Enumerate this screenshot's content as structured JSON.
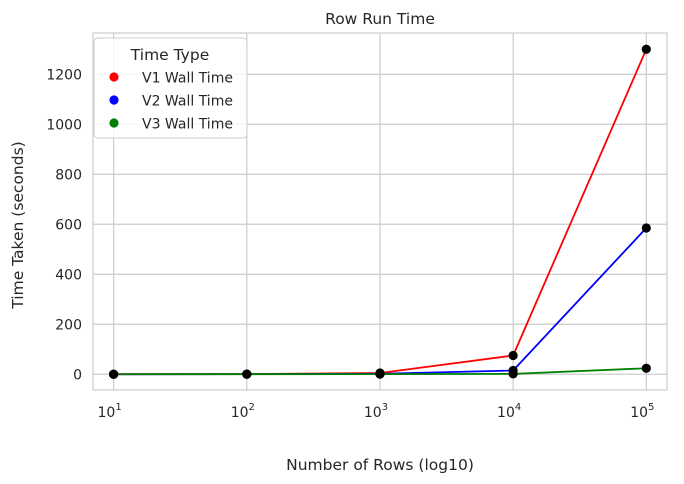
{
  "chart_data": {
    "type": "line",
    "title": "Row Run Time",
    "xlabel": "Number of Rows (log10)",
    "ylabel": "Time Taken (seconds)",
    "x_scale": "log",
    "x": [
      10,
      100,
      1000,
      10000,
      100000
    ],
    "x_tick_labels": [
      {
        "base": "10",
        "exp": "1"
      },
      {
        "base": "10",
        "exp": "2"
      },
      {
        "base": "10",
        "exp": "3"
      },
      {
        "base": "10",
        "exp": "4"
      },
      {
        "base": "10",
        "exp": "5"
      }
    ],
    "xlim": [
      7.0,
      143000
    ],
    "ylim": [
      -63,
      1365
    ],
    "y_ticks": [
      0,
      200,
      400,
      600,
      800,
      1000,
      1200
    ],
    "grid": true,
    "legend": {
      "title": "Time Type",
      "placement": "top-left"
    },
    "series": [
      {
        "name": "V1 Wall Time",
        "color": "#ff0000",
        "values": [
          0.2,
          0.6,
          5,
          75,
          1300
        ]
      },
      {
        "name": "V2 Wall Time",
        "color": "#0000ff",
        "values": [
          0.1,
          0.4,
          2,
          15,
          585
        ]
      },
      {
        "name": "V3 Wall Time",
        "color": "#008000",
        "values": [
          0.1,
          0.2,
          0.5,
          1.5,
          24
        ]
      }
    ],
    "marker_color": "#000000"
  }
}
